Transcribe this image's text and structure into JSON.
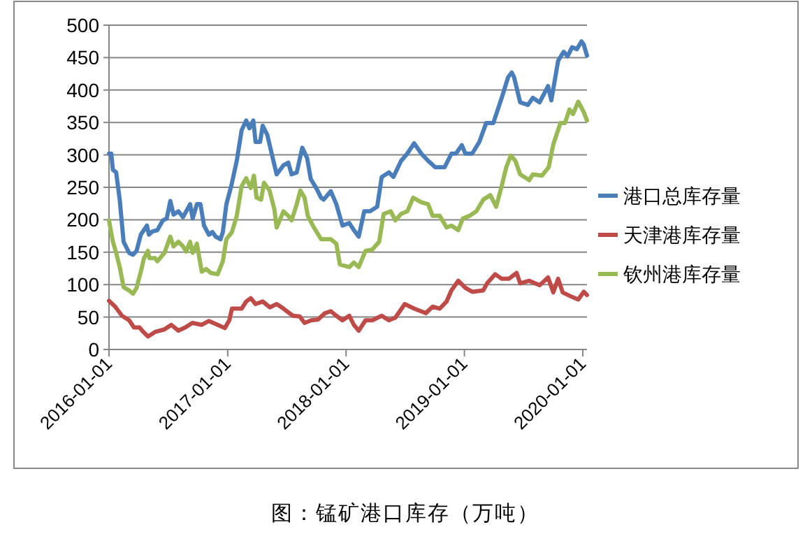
{
  "chart_data": {
    "type": "line",
    "annotations": [
      "图：锰矿港口库存（万吨）"
    ],
    "xlim": [
      "2016-01-01",
      "2020-01-14"
    ],
    "xticks": [
      "2016-01-01",
      "2017-01-01",
      "2018-01-01",
      "2019-01-01",
      "2020-01-01"
    ],
    "ylim": [
      0,
      500
    ],
    "yticks": [
      0,
      50,
      100,
      150,
      200,
      250,
      300,
      350,
      400,
      450,
      500
    ],
    "grid": "y",
    "legend": "right",
    "marker": "none",
    "line_style": "solid",
    "series": [
      {
        "name": "港口总库存量",
        "color": "#4a7ebb",
        "x": [
          "2016-01-01",
          "2016-01-08",
          "2016-01-13",
          "2016-01-23",
          "2016-02-03",
          "2016-02-15",
          "2016-03-03",
          "2016-03-15",
          "2016-03-26",
          "2016-04-08",
          "2016-04-27",
          "2016-05-03",
          "2016-05-14",
          "2016-05-29",
          "2016-06-15",
          "2016-06-27",
          "2016-07-08",
          "2016-07-18",
          "2016-08-02",
          "2016-08-16",
          "2016-08-26",
          "2016-09-07",
          "2016-09-15",
          "2016-09-28",
          "2016-10-09",
          "2016-10-20",
          "2016-11-04",
          "2016-11-15",
          "2016-11-25",
          "2016-12-10",
          "2016-12-17",
          "2016-12-28",
          "2017-01-12",
          "2017-01-29",
          "2017-02-13",
          "2017-02-27",
          "2017-03-09",
          "2017-03-21",
          "2017-03-28",
          "2017-04-11",
          "2017-04-19",
          "2017-05-03",
          "2017-05-20",
          "2017-06-01",
          "2017-06-22",
          "2017-07-07",
          "2017-07-17",
          "2017-08-02",
          "2017-08-19",
          "2017-09-03",
          "2017-09-14",
          "2017-10-02",
          "2017-10-16",
          "2017-10-24",
          "2017-11-15",
          "2017-12-02",
          "2017-12-21",
          "2018-01-11",
          "2018-01-25",
          "2018-02-09",
          "2018-02-26",
          "2018-03-16",
          "2018-04-07",
          "2018-04-21",
          "2018-05-13",
          "2018-05-27",
          "2018-06-20",
          "2018-07-09",
          "2018-07-30",
          "2018-08-21",
          "2018-09-11",
          "2018-10-03",
          "2018-11-01",
          "2018-11-22",
          "2018-12-06",
          "2018-12-24",
          "2019-01-04",
          "2019-01-25",
          "2019-02-16",
          "2019-03-09",
          "2019-03-31",
          "2019-04-26",
          "2019-05-16",
          "2019-05-27",
          "2019-06-03",
          "2019-06-22",
          "2019-07-16",
          "2019-07-31",
          "2019-08-21",
          "2019-09-16",
          "2019-09-26",
          "2019-10-17",
          "2019-11-03",
          "2019-11-15",
          "2019-11-29",
          "2019-12-14",
          "2019-12-28",
          "2020-01-04",
          "2020-01-14"
        ],
        "values": [
          302,
          302,
          277,
          273,
          231,
          166,
          149,
          146,
          152,
          177,
          191,
          177,
          182,
          184,
          199,
          202,
          229,
          208,
          213,
          204,
          213,
          224,
          202,
          224,
          224,
          191,
          177,
          181,
          174,
          170,
          181,
          224,
          252,
          291,
          338,
          353,
          341,
          353,
          320,
          320,
          345,
          331,
          295,
          270,
          284,
          288,
          270,
          273,
          311,
          295,
          263,
          248,
          234,
          231,
          244,
          224,
          191,
          195,
          184,
          174,
          213,
          213,
          220,
          266,
          273,
          266,
          291,
          302,
          318,
          302,
          291,
          281,
          281,
          302,
          302,
          315,
          302,
          302,
          320,
          349,
          349,
          388,
          420,
          427,
          420,
          381,
          377,
          388,
          381,
          406,
          384,
          445,
          459,
          452,
          466,
          463,
          475,
          470,
          453
        ]
      },
      {
        "name": "天津港库存量",
        "color": "#be4b48",
        "x": [
          "2016-01-01",
          "2016-01-20",
          "2016-02-10",
          "2016-03-03",
          "2016-03-18",
          "2016-04-04",
          "2016-04-16",
          "2016-04-30",
          "2016-05-22",
          "2016-06-20",
          "2016-07-11",
          "2016-08-02",
          "2016-08-23",
          "2016-09-14",
          "2016-10-13",
          "2016-11-04",
          "2016-12-01",
          "2016-12-23",
          "2017-01-06",
          "2017-01-14",
          "2017-02-13",
          "2017-02-27",
          "2017-03-13",
          "2017-03-28",
          "2017-04-19",
          "2017-05-11",
          "2017-06-01",
          "2017-06-22",
          "2017-07-21",
          "2017-08-11",
          "2017-08-26",
          "2017-09-16",
          "2017-10-06",
          "2017-10-28",
          "2017-11-15",
          "2017-12-02",
          "2017-12-21",
          "2018-01-11",
          "2018-01-25",
          "2018-02-09",
          "2018-03-02",
          "2018-03-23",
          "2018-04-21",
          "2018-05-13",
          "2018-06-02",
          "2018-07-01",
          "2018-07-30",
          "2018-09-04",
          "2018-09-25",
          "2018-10-17",
          "2018-11-07",
          "2018-11-22",
          "2018-12-13",
          "2019-01-04",
          "2019-01-25",
          "2019-02-28",
          "2019-03-12",
          "2019-04-06",
          "2019-04-26",
          "2019-05-18",
          "2019-06-11",
          "2019-06-22",
          "2019-07-20",
          "2019-08-21",
          "2019-09-16",
          "2019-10-02",
          "2019-10-17",
          "2019-10-31",
          "2019-11-29",
          "2019-12-18",
          "2020-01-04",
          "2020-01-14"
        ],
        "values": [
          75,
          66,
          52,
          45,
          34,
          34,
          27,
          20,
          27,
          31,
          38,
          29,
          34,
          41,
          38,
          44,
          38,
          33,
          45,
          63,
          63,
          74,
          79,
          70,
          74,
          65,
          70,
          63,
          52,
          51,
          41,
          45,
          46,
          56,
          59,
          52,
          45,
          52,
          38,
          29,
          45,
          45,
          52,
          45,
          49,
          70,
          63,
          56,
          66,
          63,
          74,
          91,
          106,
          95,
          89,
          91,
          102,
          116,
          109,
          109,
          118,
          102,
          106,
          99,
          111,
          88,
          109,
          88,
          81,
          77,
          89,
          84
        ]
      },
      {
        "name": "钦州港库存量",
        "color": "#98b954",
        "x": [
          "2016-01-01",
          "2016-01-13",
          "2016-01-23",
          "2016-02-03",
          "2016-02-15",
          "2016-03-03",
          "2016-03-15",
          "2016-03-26",
          "2016-04-08",
          "2016-04-18",
          "2016-04-30",
          "2016-05-04",
          "2016-05-22",
          "2016-05-29",
          "2016-06-20",
          "2016-07-08",
          "2016-07-18",
          "2016-08-02",
          "2016-08-16",
          "2016-08-26",
          "2016-09-07",
          "2016-09-15",
          "2016-09-28",
          "2016-10-13",
          "2016-10-27",
          "2016-11-10",
          "2016-12-01",
          "2016-12-17",
          "2016-12-28",
          "2017-01-14",
          "2017-01-29",
          "2017-02-13",
          "2017-02-27",
          "2017-03-13",
          "2017-03-23",
          "2017-03-31",
          "2017-04-14",
          "2017-04-23",
          "2017-05-10",
          "2017-05-25",
          "2017-06-01",
          "2017-06-22",
          "2017-07-07",
          "2017-07-17",
          "2017-08-02",
          "2017-08-13",
          "2017-08-26",
          "2017-09-05",
          "2017-09-24",
          "2017-10-16",
          "2017-11-15",
          "2017-12-02",
          "2017-12-13",
          "2018-01-11",
          "2018-01-25",
          "2018-02-09",
          "2018-03-02",
          "2018-03-23",
          "2018-04-13",
          "2018-04-27",
          "2018-05-19",
          "2018-06-02",
          "2018-06-20",
          "2018-07-09",
          "2018-07-27",
          "2018-08-21",
          "2018-09-11",
          "2018-09-25",
          "2018-10-17",
          "2018-11-07",
          "2018-11-22",
          "2018-12-13",
          "2018-12-27",
          "2019-01-17",
          "2019-02-07",
          "2019-02-28",
          "2019-03-22",
          "2019-04-09",
          "2019-04-26",
          "2019-05-10",
          "2019-05-24",
          "2019-06-07",
          "2019-06-22",
          "2019-07-20",
          "2019-07-31",
          "2019-08-28",
          "2019-09-18",
          "2019-10-02",
          "2019-10-24",
          "2019-11-07",
          "2019-11-21",
          "2019-12-02",
          "2019-12-18",
          "2020-01-04",
          "2020-01-14"
        ],
        "values": [
          199,
          166,
          149,
          127,
          96,
          91,
          86,
          95,
          120,
          141,
          152,
          141,
          141,
          136,
          149,
          174,
          159,
          166,
          159,
          151,
          166,
          149,
          163,
          120,
          124,
          118,
          116,
          136,
          170,
          181,
          206,
          252,
          264,
          249,
          268,
          234,
          231,
          257,
          245,
          216,
          188,
          213,
          206,
          199,
          224,
          245,
          234,
          206,
          188,
          170,
          170,
          163,
          131,
          127,
          134,
          127,
          152,
          154,
          166,
          209,
          213,
          199,
          209,
          213,
          234,
          227,
          224,
          206,
          206,
          188,
          191,
          184,
          202,
          206,
          213,
          231,
          238,
          220,
          252,
          281,
          299,
          291,
          270,
          261,
          270,
          268,
          281,
          316,
          349,
          349,
          370,
          363,
          382,
          366,
          353
        ]
      }
    ]
  }
}
